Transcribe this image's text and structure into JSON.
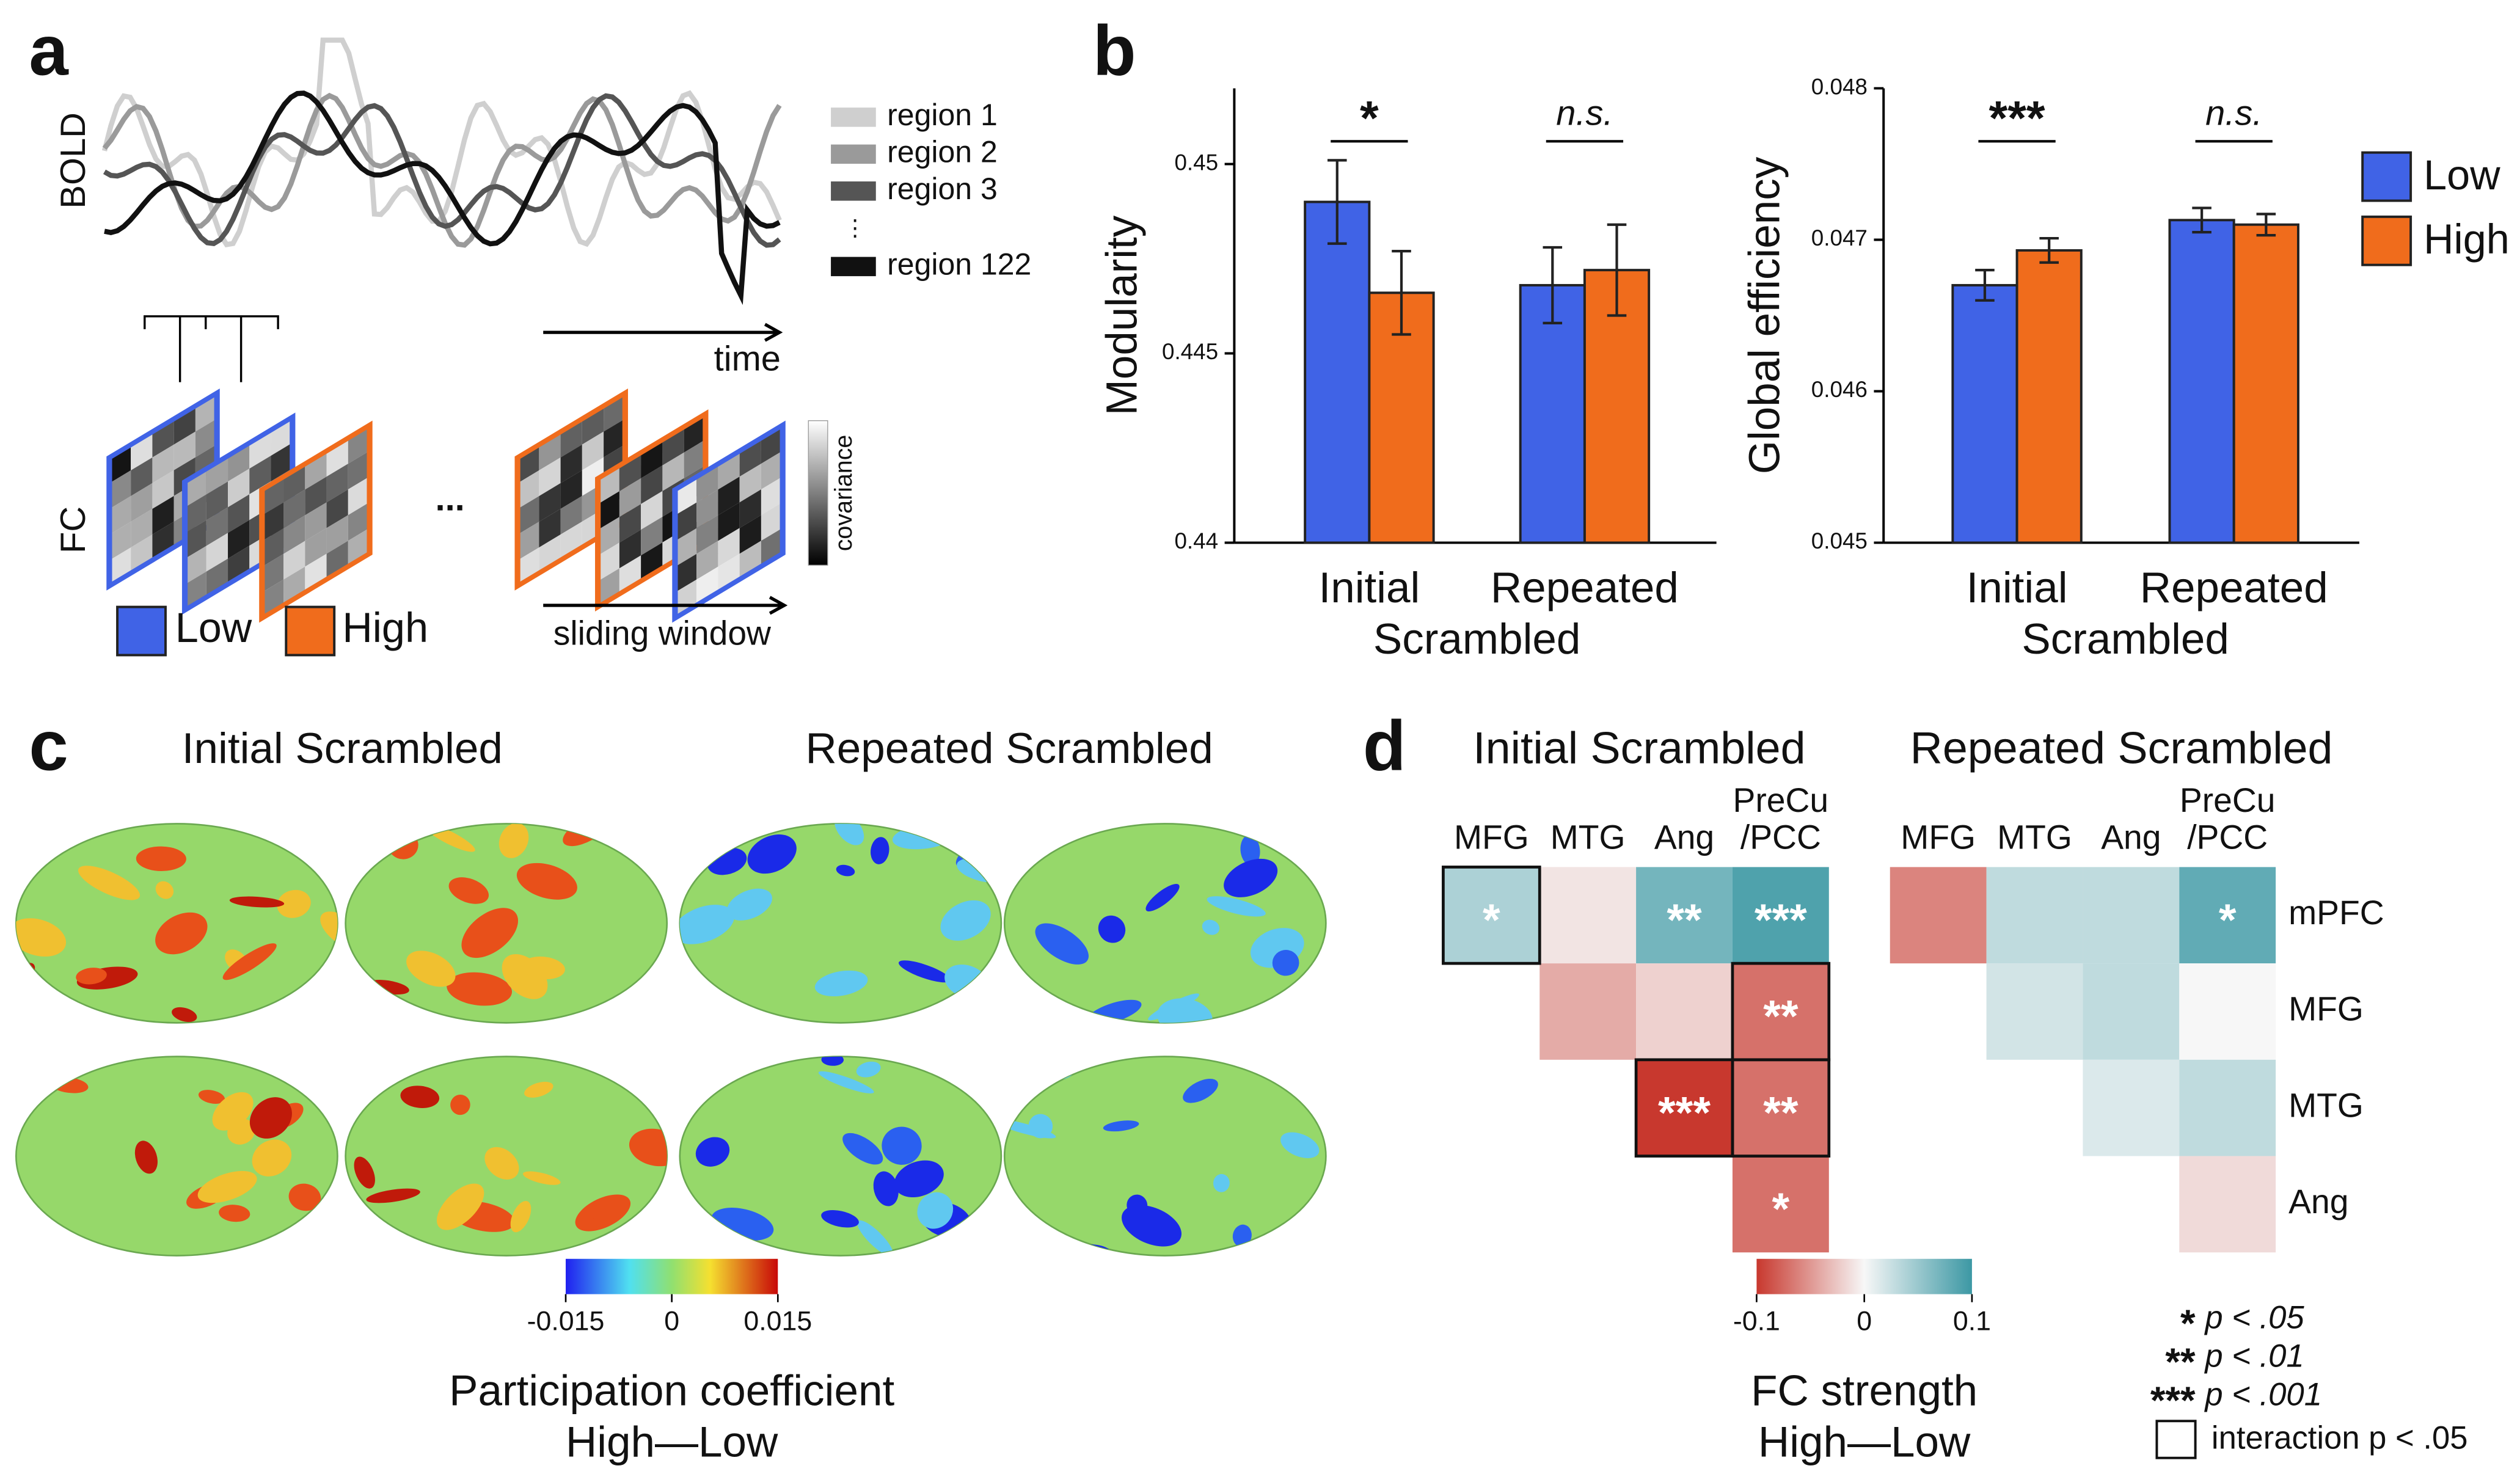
{
  "panel_labels": [
    "a",
    "b",
    "c",
    "d"
  ],
  "panel_a": {
    "y_label": "BOLD",
    "legend": [
      "region 1",
      "region 2",
      "region 3",
      "region 122"
    ],
    "legend_ellipsis": "⋮",
    "x_label": "time",
    "fc_label": "FC",
    "ellipsis": "...",
    "colorbar_label": "covariance",
    "window_label": "sliding window"
  },
  "chart_data": [
    {
      "type": "bar",
      "y_label": "Modularity",
      "categories": [
        "Initial",
        "Repeated"
      ],
      "x_label": "Scrambled",
      "ylim": [
        0.44,
        0.452
      ],
      "yticks": [
        0.44,
        0.445,
        0.45
      ],
      "annotations": [
        "*",
        "n.s."
      ],
      "series": [
        {
          "name": "Low",
          "color": "#4063e6",
          "values": [
            0.449,
            0.4468
          ],
          "errors": [
            0.0011,
            0.001
          ]
        },
        {
          "name": "High",
          "color": "#f06c1c",
          "values": [
            0.4466,
            0.4472
          ],
          "errors": [
            0.0011,
            0.0012
          ]
        }
      ]
    },
    {
      "type": "bar",
      "y_label": "Global efficiency",
      "categories": [
        "Initial",
        "Repeated"
      ],
      "x_label": "Scrambled",
      "ylim": [
        0.045,
        0.048
      ],
      "yticks": [
        0.045,
        0.046,
        0.047,
        0.048
      ],
      "annotations": [
        "***",
        "n.s."
      ],
      "legend": "right",
      "series": [
        {
          "name": "Low",
          "color": "#4063e6",
          "values": [
            0.0467,
            0.04713
          ],
          "errors": [
            0.0001,
            8e-05
          ]
        },
        {
          "name": "High",
          "color": "#f06c1c",
          "values": [
            0.04693,
            0.0471
          ],
          "errors": [
            8e-05,
            7e-05
          ]
        }
      ]
    },
    {
      "type": "heatmap",
      "title": "Initial Scrambled",
      "columns": [
        "MFG",
        "MTG",
        "Ang",
        "PreCu\n/PCC"
      ],
      "zlim": [
        -0.1,
        0.1
      ],
      "values": [
        [
          0.04,
          -0.01,
          0.07,
          0.09
        ],
        [
          null,
          -0.04,
          -0.02,
          -0.07
        ],
        [
          null,
          null,
          -0.1,
          -0.07
        ],
        [
          null,
          null,
          null,
          -0.07
        ]
      ],
      "annotations": [
        [
          "*",
          null,
          "**",
          "***"
        ],
        [
          null,
          null,
          null,
          "**"
        ],
        [
          null,
          null,
          "***",
          "**"
        ],
        [
          null,
          null,
          null,
          "*"
        ]
      ],
      "interaction": [
        [
          true,
          false,
          false,
          false
        ],
        [
          false,
          false,
          false,
          true
        ],
        [
          false,
          false,
          true,
          true
        ],
        [
          false,
          false,
          false,
          false
        ]
      ]
    },
    {
      "type": "heatmap",
      "title": "Repeated Scrambled",
      "columns": [
        "MFG",
        "MTG",
        "Ang",
        "PreCu\n/PCC"
      ],
      "rows": [
        "mPFC",
        "MFG",
        "MTG",
        "Ang"
      ],
      "zlim": [
        -0.1,
        0.1
      ],
      "values": [
        [
          -0.06,
          0.03,
          0.03,
          0.08
        ],
        [
          null,
          0.02,
          0.03,
          0.0
        ],
        [
          null,
          null,
          0.015,
          0.03
        ],
        [
          null,
          null,
          null,
          -0.015
        ]
      ],
      "annotations": [
        [
          null,
          null,
          null,
          "*"
        ],
        [
          null,
          null,
          null,
          null
        ],
        [
          null,
          null,
          null,
          null
        ],
        [
          null,
          null,
          null,
          null
        ]
      ],
      "interaction": [
        [
          false,
          false,
          false,
          false
        ],
        [
          false,
          false,
          false,
          false
        ],
        [
          false,
          false,
          false,
          false
        ],
        [
          false,
          false,
          false,
          false
        ]
      ]
    }
  ],
  "panel_c": {
    "titles": [
      "Initial Scrambled",
      "Repeated Scrambled"
    ],
    "colorbar": {
      "lim": [
        -0.015,
        0.015
      ],
      "ticks": [
        -0.015,
        0,
        0.015
      ],
      "label": [
        "Participation coefficient",
        "High—Low"
      ]
    }
  },
  "panel_d": {
    "colorbar": {
      "lim": [
        -0.1,
        0.1
      ],
      "ticks": [
        -0.1,
        0,
        0.1
      ],
      "label": [
        "FC strength",
        "High—Low"
      ]
    },
    "legend": [
      {
        "symbol": "*",
        "text": "p < .05"
      },
      {
        "symbol": "**",
        "text": "p < .01"
      },
      {
        "symbol": "***",
        "text": "p < .001"
      }
    ],
    "interaction_label": "interaction p < .05"
  }
}
